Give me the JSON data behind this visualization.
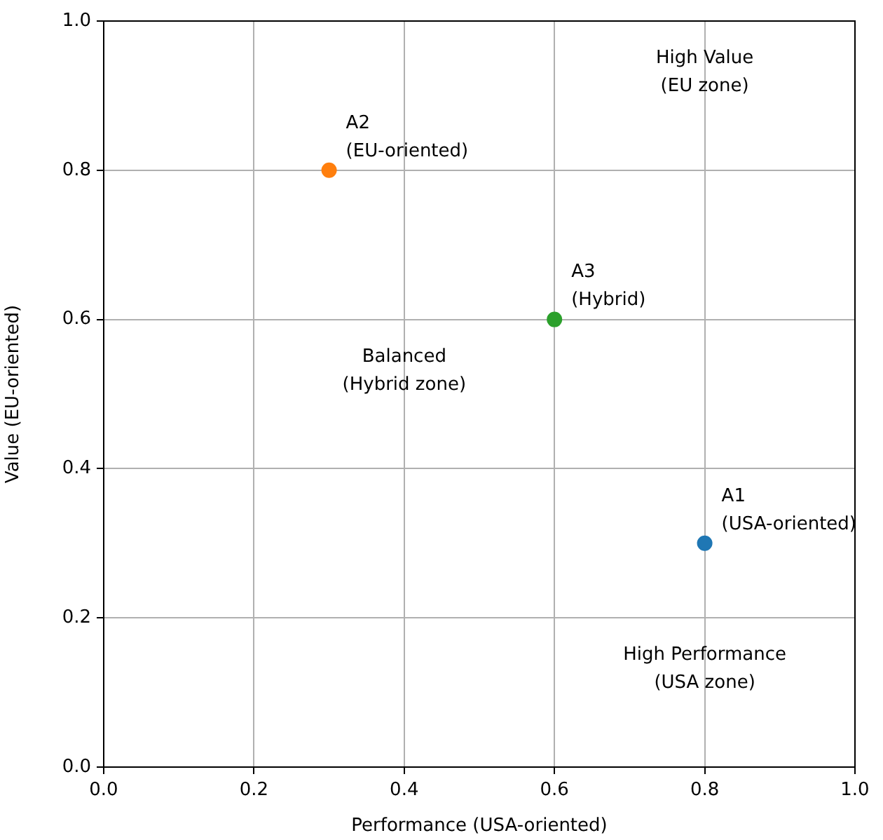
{
  "chart_data": {
    "type": "scatter",
    "xlabel": "Performance (USA-oriented)",
    "ylabel": "Value (EU-oriented)",
    "series": [
      {
        "name": "A1\n(USA-oriented)",
        "color": "#1f77b4",
        "x": [
          0.8
        ],
        "values": [
          0.3
        ]
      },
      {
        "name": "A2\n(EU-oriented)",
        "color": "#ff7f0e",
        "x": [
          0.3
        ],
        "values": [
          0.8
        ]
      },
      {
        "name": "A3\n(Hybrid)",
        "color": "#2ca02c",
        "x": [
          0.6
        ],
        "values": [
          0.6
        ]
      }
    ],
    "annotations": [
      "High Value\n(EU zone)",
      "Balanced\n(Hybrid zone)",
      "High Performance\n(USA zone)"
    ],
    "xlim": [
      0,
      1
    ],
    "ylim": [
      0,
      1
    ],
    "xticks": [
      {
        "value": 0,
        "label": "0.0"
      },
      0.2,
      0.4,
      0.6,
      0.8,
      {
        "value": 1,
        "label": "1.0"
      }
    ],
    "yticks": [
      {
        "value": 0,
        "label": "0.0"
      },
      0.2,
      0.4,
      0.6,
      0.8,
      {
        "value": 1,
        "label": "1.0"
      }
    ],
    "grid": true,
    "marker": "circle",
    "legend": false
  }
}
